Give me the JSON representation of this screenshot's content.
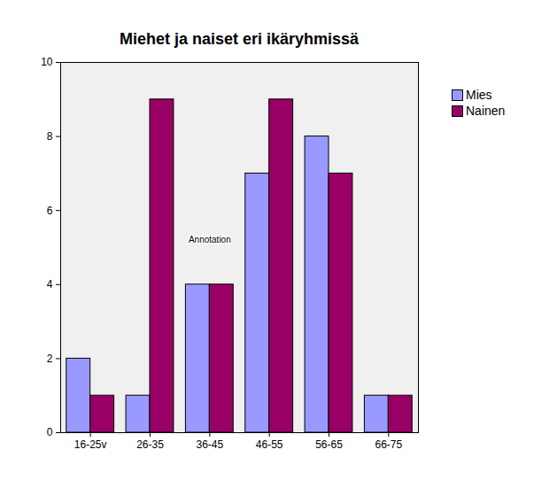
{
  "chart_data": {
    "type": "bar",
    "title": "Miehet ja naiset eri ikäryhmissä",
    "categories": [
      "16-25v",
      "26-35",
      "36-45",
      "46-55",
      "56-65",
      "66-75"
    ],
    "series": [
      {
        "name": "Mies",
        "color": "#9999ff",
        "values": [
          2,
          1,
          4,
          7,
          8,
          1
        ]
      },
      {
        "name": "Nainen",
        "color": "#990066",
        "values": [
          1,
          9,
          4,
          9,
          7,
          1
        ]
      }
    ],
    "ylim": [
      0,
      10
    ],
    "yticks": [
      0,
      2,
      4,
      6,
      8,
      10
    ],
    "grid": false,
    "legend": "right",
    "annotations": [
      {
        "text": "Annotation",
        "x": "36-45",
        "y": 5.2
      }
    ]
  }
}
